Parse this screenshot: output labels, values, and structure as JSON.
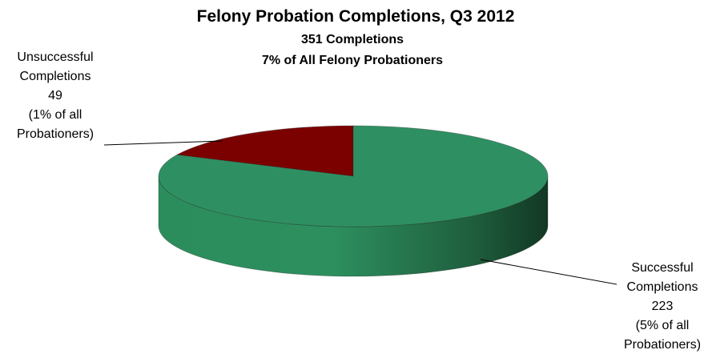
{
  "chart_data": {
    "type": "pie",
    "style": "3d",
    "title": "Felony Probation Completions, Q3 2012",
    "subtitle": [
      "351 Completions",
      "7% of All Felony Probationers"
    ],
    "slices": [
      {
        "key": "successful",
        "value": 223,
        "color": "#2e9062",
        "label_lines": [
          "Successful",
          "Completions",
          "223",
          "(5% of all",
          "Probationers)"
        ]
      },
      {
        "key": "unsuccessful",
        "value": 49,
        "color": "#7b0000",
        "label_lines": [
          "Unsuccessful",
          "Completions",
          "49",
          "(1% of all",
          "Probationers)"
        ]
      }
    ]
  }
}
